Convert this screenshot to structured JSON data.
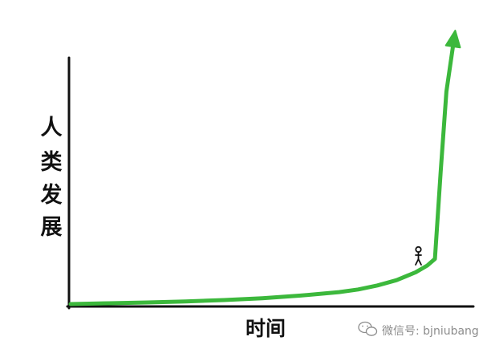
{
  "chart_data": {
    "type": "line",
    "title": "",
    "xlabel": "时间",
    "ylabel": "人类发展",
    "ylabel_chars": [
      "人",
      "类",
      "发",
      "展"
    ],
    "series": [
      {
        "x": [
          0,
          10,
          20,
          30,
          40,
          50,
          60,
          70,
          75,
          80,
          85,
          90,
          93,
          95,
          96.5,
          98,
          100
        ],
        "y": [
          0,
          0.3,
          0.6,
          1,
          1.5,
          2.2,
          3.2,
          4.5,
          5.5,
          7,
          9,
          12,
          14.5,
          17,
          50,
          80,
          100
        ]
      }
    ],
    "xlim": [
      0,
      100
    ],
    "ylim": [
      0,
      100
    ],
    "grid": false,
    "end_marker": "arrow",
    "annotation_icon": "stick-figure-icon",
    "annotation_at": {
      "x": 93,
      "y": 14.5
    },
    "line_color": "#3cb83c",
    "axis_color": "#111111"
  },
  "watermark": {
    "icon": "wechat-icon",
    "text": "微信号: bjniubang"
  }
}
